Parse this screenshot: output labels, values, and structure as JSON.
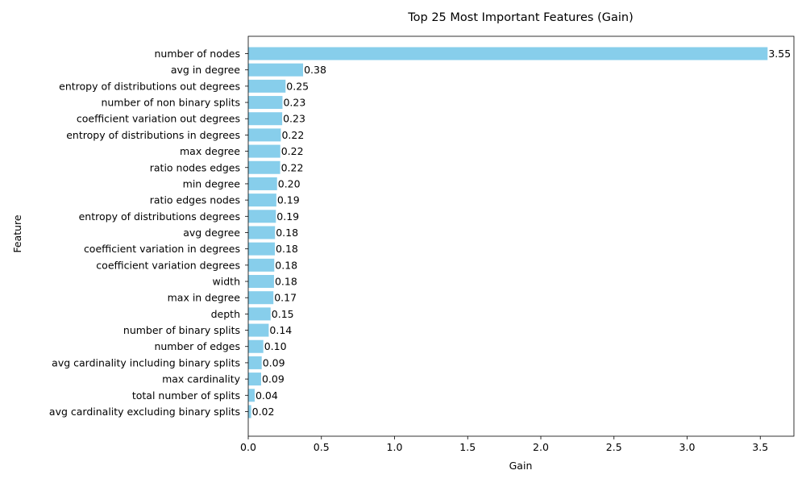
{
  "chart_data": {
    "type": "bar",
    "orientation": "horizontal",
    "title": "Top 25 Most Important Features (Gain)",
    "xlabel": "Gain",
    "ylabel": "Feature",
    "xlim": [
      0,
      3.73
    ],
    "xticks": [
      0.0,
      0.5,
      1.0,
      1.5,
      2.0,
      2.5,
      3.0,
      3.5
    ],
    "xtick_labels": [
      "0.0",
      "0.5",
      "1.0",
      "1.5",
      "2.0",
      "2.5",
      "3.0",
      "3.5"
    ],
    "grid": false,
    "legend": "none",
    "bar_color": "#87ceeb",
    "categories": [
      "number of nodes",
      "avg in degree",
      "entropy of distributions out degrees",
      "number of non binary splits",
      "coefficient variation out degrees",
      "entropy of distributions in degrees",
      "max degree",
      "ratio nodes edges",
      "min degree",
      "ratio edges nodes",
      "entropy of distributions degrees",
      "avg degree",
      "coefficient variation in degrees",
      "coefficient variation degrees",
      "width",
      "max in degree",
      "depth",
      "number of binary splits",
      "number of edges",
      "avg cardinality including binary splits",
      "max cardinality",
      "total number of splits",
      "avg cardinality excluding binary splits"
    ],
    "values": [
      3.55,
      0.375,
      0.255,
      0.234,
      0.232,
      0.223,
      0.219,
      0.218,
      0.197,
      0.192,
      0.189,
      0.183,
      0.182,
      0.178,
      0.176,
      0.172,
      0.153,
      0.14,
      0.103,
      0.092,
      0.088,
      0.044,
      0.02
    ],
    "value_labels": [
      "3.55",
      "0.38",
      "0.25",
      "0.23",
      "0.23",
      "0.22",
      "0.22",
      "0.22",
      "0.20",
      "0.19",
      "0.19",
      "0.18",
      "0.18",
      "0.18",
      "0.18",
      "0.17",
      "0.15",
      "0.14",
      "0.10",
      "0.09",
      "0.09",
      "0.04",
      "0.02"
    ]
  }
}
